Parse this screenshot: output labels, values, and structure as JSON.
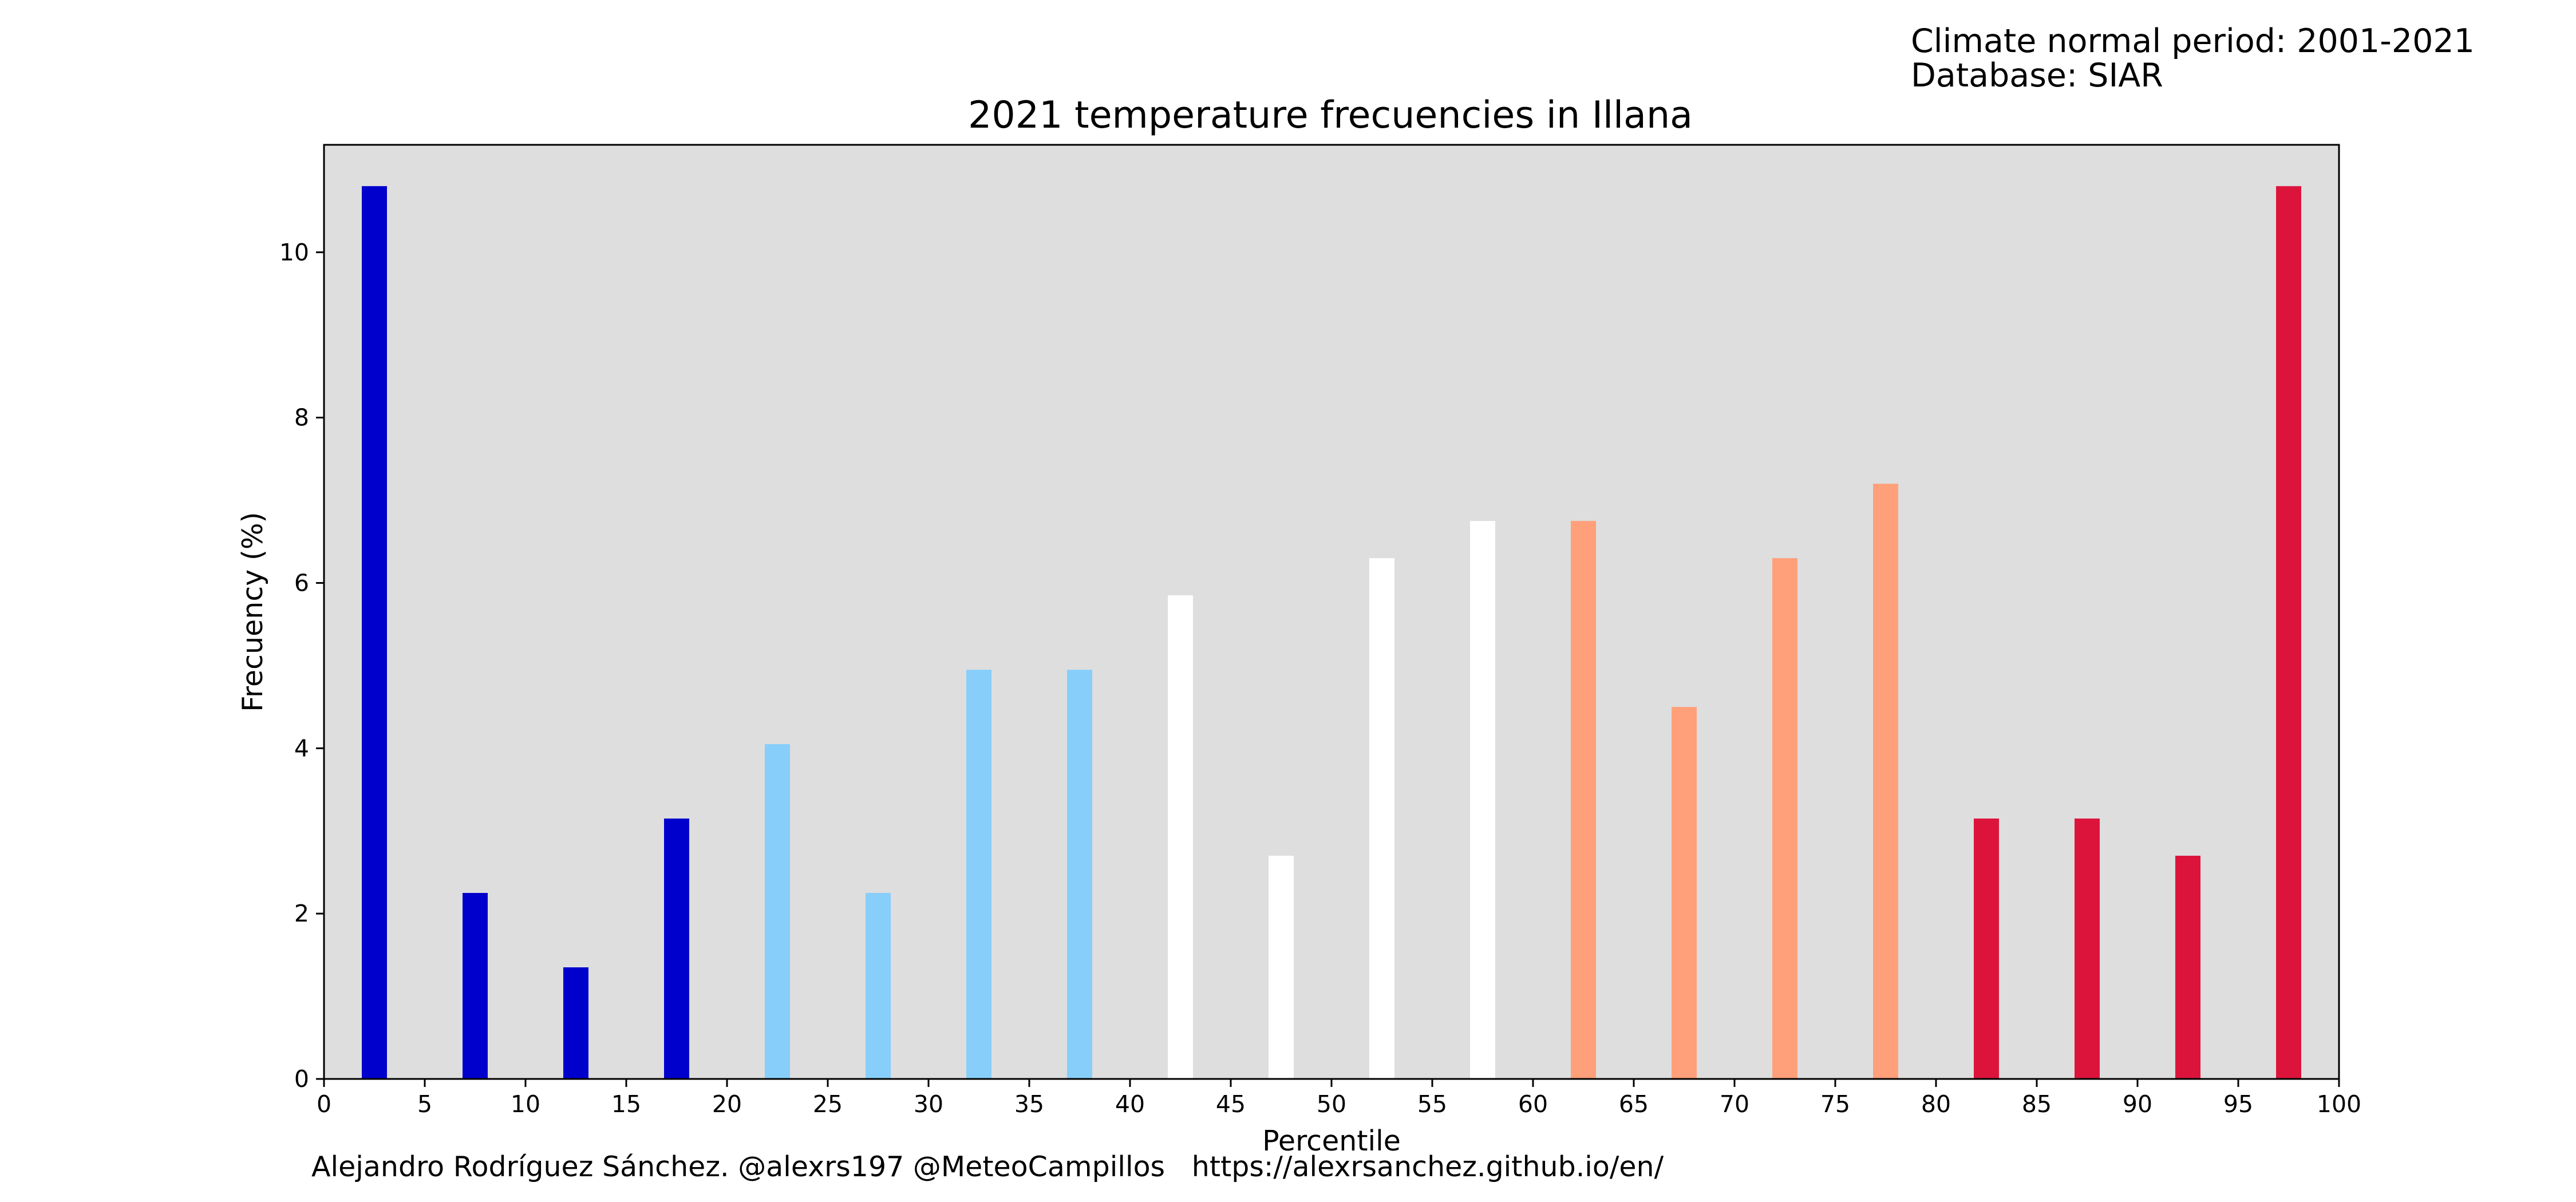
{
  "header": {
    "climate_period": "Climate normal period: 2001-2021",
    "database": "Database: SIAR"
  },
  "footer": {
    "credits": "Alejandro Rodríguez Sánchez. @alexrs197 @MeteoCampillos   https://alexrsanchez.github.io/en/"
  },
  "chart_data": {
    "type": "bar",
    "title": "2021 temperature frecuencies in Illana",
    "xlabel": "Percentile",
    "ylabel": "Frecuency (%)",
    "xlim": [
      0,
      100
    ],
    "ylim": [
      0,
      11.3
    ],
    "xticks": [
      0,
      5,
      10,
      15,
      20,
      25,
      30,
      35,
      40,
      45,
      50,
      55,
      60,
      65,
      70,
      75,
      80,
      85,
      90,
      95,
      100
    ],
    "yticks": [
      0,
      2,
      4,
      6,
      8,
      10
    ],
    "grid": false,
    "plot_background": "#dedede",
    "bar_width": 1.25,
    "x": [
      2.5,
      7.5,
      12.5,
      17.5,
      22.5,
      27.5,
      32.5,
      37.5,
      42.5,
      47.5,
      52.5,
      57.5,
      62.5,
      67.5,
      72.5,
      77.5,
      82.5,
      87.5,
      92.5,
      97.5
    ],
    "values": [
      10.8,
      2.25,
      1.35,
      3.15,
      4.05,
      2.25,
      4.95,
      4.95,
      5.85,
      2.7,
      6.3,
      6.75,
      6.75,
      4.5,
      6.3,
      7.2,
      3.15,
      3.15,
      2.7,
      10.8
    ],
    "colors": [
      "#0000cd",
      "#0000cd",
      "#0000cd",
      "#0000cd",
      "#87cefa",
      "#87cefa",
      "#87cefa",
      "#87cefa",
      "#ffffff",
      "#ffffff",
      "#ffffff",
      "#ffffff",
      "#ffa07a",
      "#ffa07a",
      "#ffa07a",
      "#ffa07a",
      "#dc143c",
      "#dc143c",
      "#dc143c",
      "#dc143c"
    ]
  }
}
